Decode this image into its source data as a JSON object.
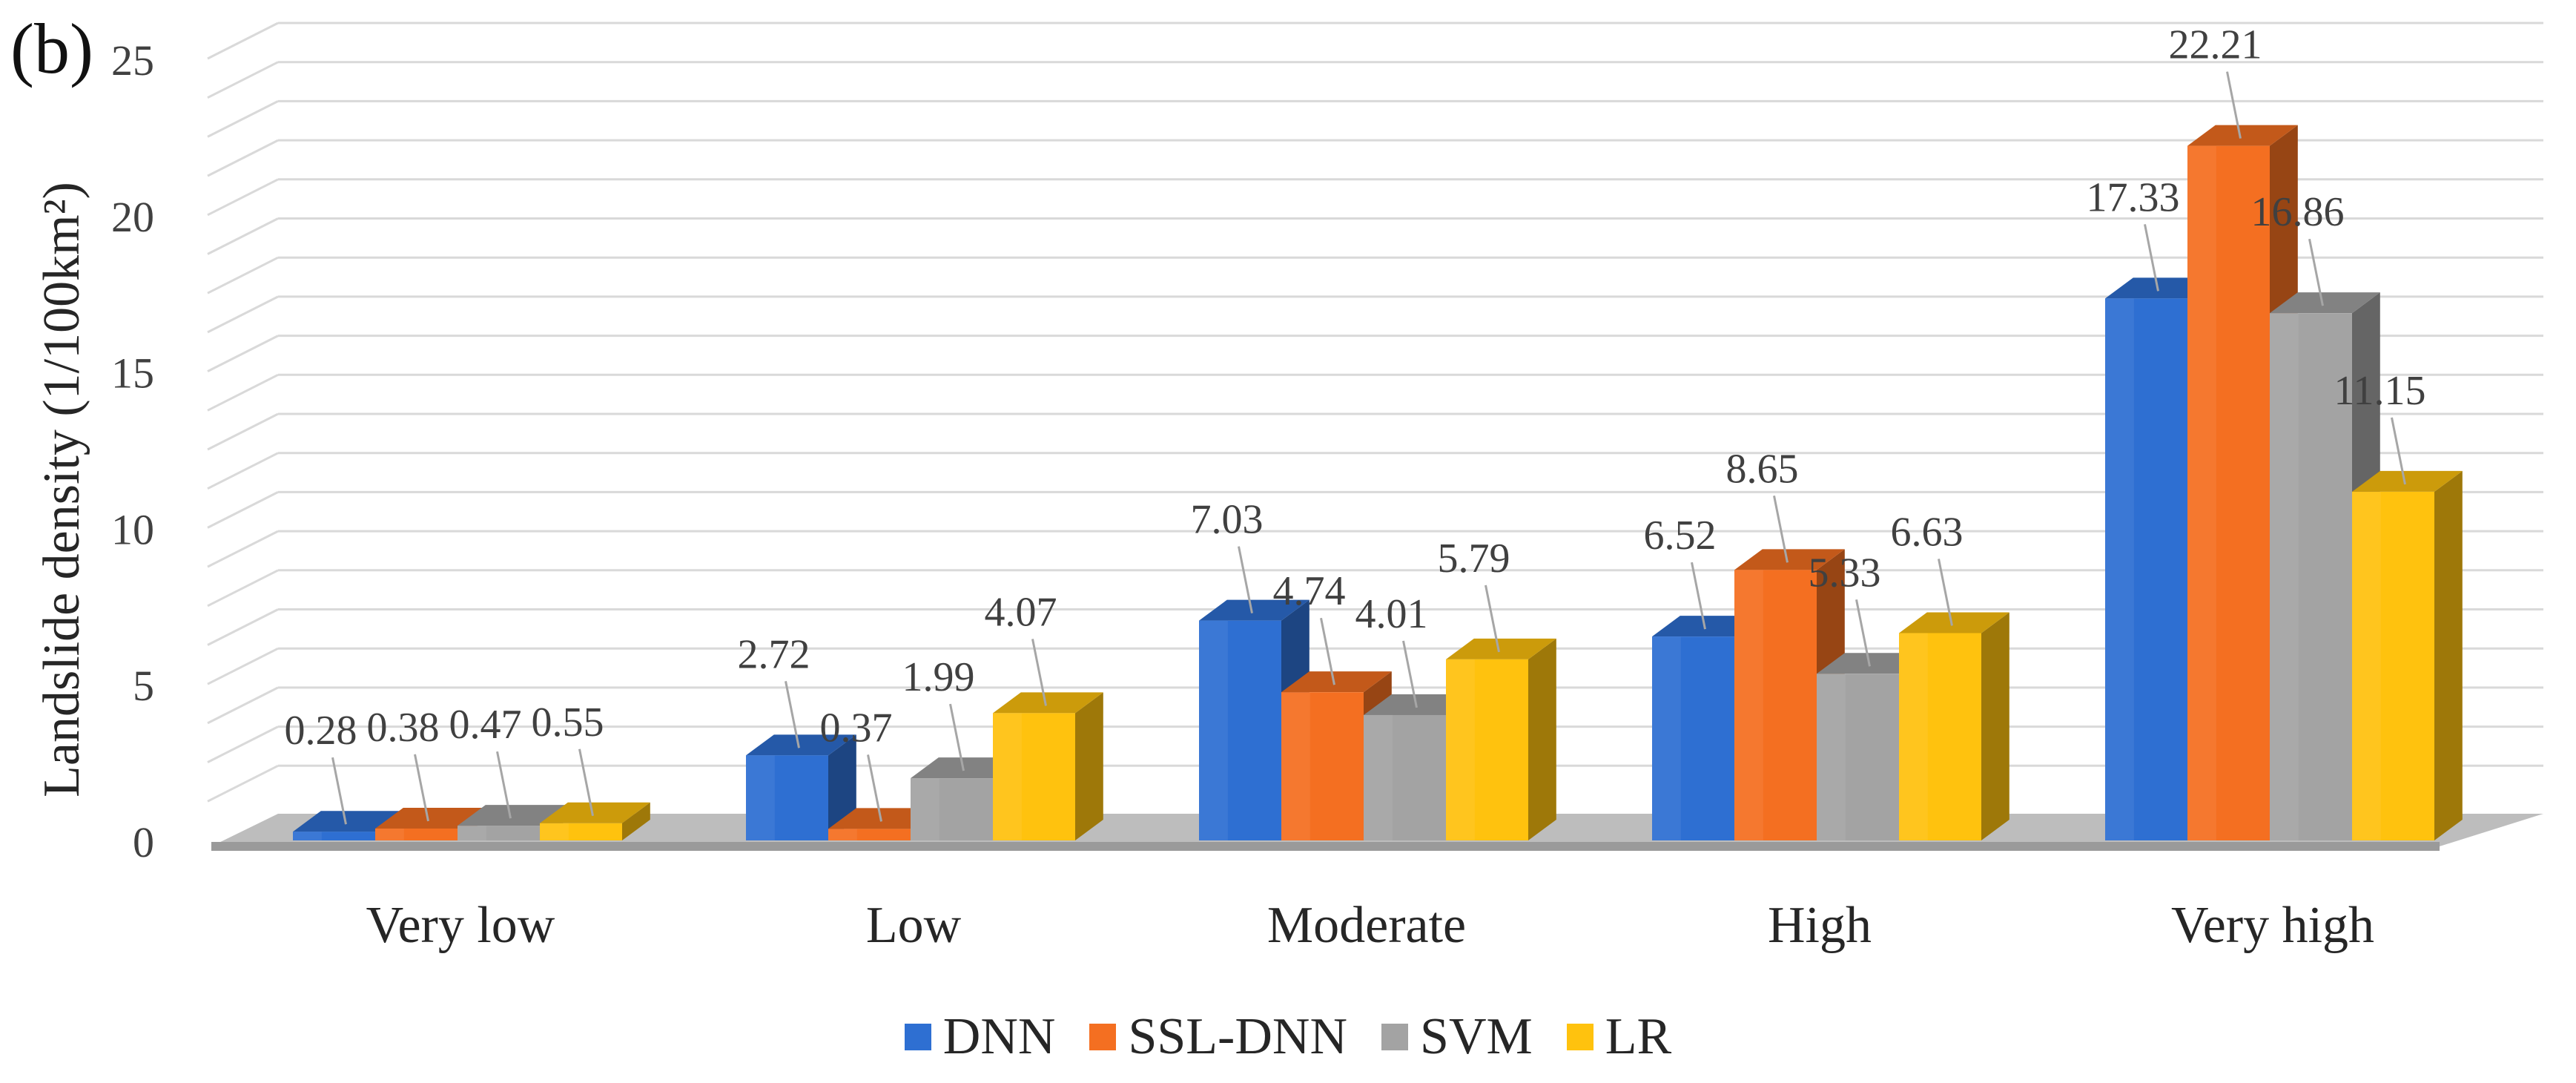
{
  "panel_label": "(b)",
  "chart_data": {
    "type": "bar",
    "style": "3d-clustered-column",
    "categories": [
      "Very low",
      "Low",
      "Moderate",
      "High",
      "Very high"
    ],
    "series": [
      {
        "name": "DNN",
        "color": "#2E6FD2",
        "values": [
          0.28,
          2.72,
          7.03,
          6.52,
          17.33
        ]
      },
      {
        "name": "SSL-DNN",
        "color": "#F46F21",
        "values": [
          0.38,
          0.37,
          4.74,
          8.65,
          22.21
        ]
      },
      {
        "name": "SVM",
        "color": "#A3A3A3",
        "values": [
          0.47,
          1.99,
          4.01,
          5.33,
          16.86
        ]
      },
      {
        "name": "LR",
        "color": "#FFC20E",
        "values": [
          0.55,
          4.07,
          5.79,
          6.63,
          11.15
        ]
      }
    ],
    "ylabel": "Landslide density (1/100km²)",
    "ylim": [
      0,
      25
    ],
    "yticks": [
      0,
      5,
      10,
      15,
      20,
      25
    ],
    "grid": true,
    "legend": "bottom"
  }
}
